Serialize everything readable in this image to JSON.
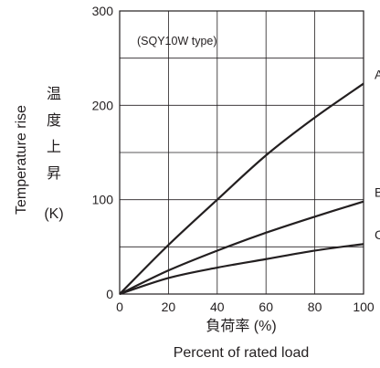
{
  "chart_data": {
    "type": "line",
    "title": "",
    "annotation": "(SQY10W type)",
    "xlabel_jp": "負荷率 (%)",
    "xlabel_en": "Percent of rated load",
    "ylabel_en": "Temperature rise",
    "ylabel_jp_chars": [
      "温",
      "度",
      "上",
      "昇"
    ],
    "ylabel_unit": "(K)",
    "xlim": [
      0,
      100
    ],
    "ylim": [
      0,
      300
    ],
    "x_ticks": [
      "0",
      "20",
      "40",
      "60",
      "80",
      "100"
    ],
    "y_ticks": [
      "0",
      "100",
      "200",
      "300"
    ],
    "y_tick_values": [
      0,
      100,
      200,
      300
    ],
    "x_tick_values": [
      0,
      20,
      40,
      60,
      80,
      100
    ],
    "grid": true,
    "series": [
      {
        "name": "A",
        "x": [
          0,
          20,
          40,
          60,
          80,
          100
        ],
        "values": [
          0,
          52,
          100,
          147,
          187,
          223
        ]
      },
      {
        "name": "B",
        "x": [
          0,
          20,
          40,
          60,
          80,
          100
        ],
        "values": [
          0,
          25,
          46,
          65,
          82,
          98
        ]
      },
      {
        "name": "C",
        "x": [
          0,
          20,
          40,
          60,
          80,
          100
        ],
        "values": [
          0,
          17,
          28,
          37,
          46,
          53
        ]
      }
    ]
  }
}
